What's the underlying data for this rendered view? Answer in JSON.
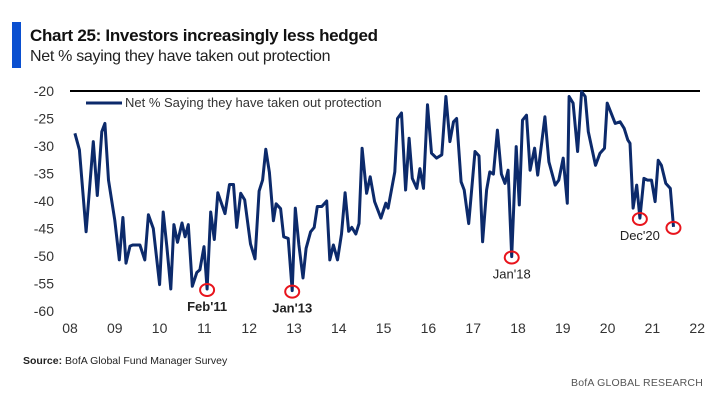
{
  "header": {
    "title": "Chart 25: Investors increasingly less hedged",
    "subtitle": "Net % saying they have taken out protection"
  },
  "footer": {
    "source_label": "Source:",
    "source_text": "BofA Global Fund Manager Survey",
    "brand": "BofA GLOBAL RESEARCH"
  },
  "chart_data": {
    "type": "line",
    "title": "Chart 25: Investors increasingly less hedged",
    "subtitle": "Net % saying they have taken out protection",
    "xlabel": "",
    "ylabel": "",
    "ylim": [
      -60,
      -20
    ],
    "xlim": [
      2008,
      2022
    ],
    "yticks": [
      -20,
      -25,
      -30,
      -35,
      -40,
      -45,
      -50,
      -55,
      -60
    ],
    "xticks": [
      {
        "v": 2008,
        "label": "08"
      },
      {
        "v": 2009,
        "label": "09"
      },
      {
        "v": 2010,
        "label": "10"
      },
      {
        "v": 2011,
        "label": "11"
      },
      {
        "v": 2012,
        "label": "12"
      },
      {
        "v": 2013,
        "label": "13"
      },
      {
        "v": 2014,
        "label": "14"
      },
      {
        "v": 2015,
        "label": "15"
      },
      {
        "v": 2016,
        "label": "16"
      },
      {
        "v": 2017,
        "label": "17"
      },
      {
        "v": 2018,
        "label": "18"
      },
      {
        "v": 2019,
        "label": "19"
      },
      {
        "v": 2020,
        "label": "20"
      },
      {
        "v": 2021,
        "label": "21"
      },
      {
        "v": 2022,
        "label": "22"
      }
    ],
    "grid": false,
    "legend": {
      "placement": "top-left",
      "entries": [
        "Net % Saying they have taken out protection"
      ]
    },
    "colors": {
      "line": "#0c2a6b",
      "highlight": "#e8141c"
    },
    "series": [
      {
        "name": "Net % Saying they have taken out protection",
        "points": [
          [
            2008.11,
            -27.7
          ],
          [
            2008.21,
            -30.7
          ],
          [
            2008.36,
            -45.6
          ],
          [
            2008.52,
            -29.2
          ],
          [
            2008.61,
            -39
          ],
          [
            2008.71,
            -27.4
          ],
          [
            2008.78,
            -25.9
          ],
          [
            2008.86,
            -36.2
          ],
          [
            2009.0,
            -43.5
          ],
          [
            2009.1,
            -50.7
          ],
          [
            2009.18,
            -43
          ],
          [
            2009.25,
            -51.3
          ],
          [
            2009.34,
            -48.2
          ],
          [
            2009.4,
            -48
          ],
          [
            2009.56,
            -48
          ],
          [
            2009.67,
            -50.7
          ],
          [
            2009.75,
            -42.5
          ],
          [
            2009.86,
            -45
          ],
          [
            2010.0,
            -55.2
          ],
          [
            2010.08,
            -42
          ],
          [
            2010.16,
            -48.2
          ],
          [
            2010.25,
            -56
          ],
          [
            2010.32,
            -44.3
          ],
          [
            2010.4,
            -47.5
          ],
          [
            2010.5,
            -44
          ],
          [
            2010.57,
            -46.5
          ],
          [
            2010.64,
            -44.3
          ],
          [
            2010.73,
            -55.5
          ],
          [
            2010.83,
            -53
          ],
          [
            2010.9,
            -52.5
          ],
          [
            2010.99,
            -48.3
          ],
          [
            2011.06,
            -56
          ],
          [
            2011.14,
            -42
          ],
          [
            2011.22,
            -47
          ],
          [
            2011.3,
            -38.5
          ],
          [
            2011.46,
            -42.3
          ],
          [
            2011.56,
            -37
          ],
          [
            2011.65,
            -37
          ],
          [
            2011.72,
            -44.8
          ],
          [
            2011.81,
            -38.6
          ],
          [
            2011.9,
            -39.8
          ],
          [
            2012.03,
            -47.8
          ],
          [
            2012.13,
            -50.5
          ],
          [
            2012.22,
            -38.2
          ],
          [
            2012.3,
            -36.2
          ],
          [
            2012.37,
            -30.6
          ],
          [
            2012.45,
            -34.8
          ],
          [
            2012.54,
            -43.6
          ],
          [
            2012.6,
            -40.5
          ],
          [
            2012.7,
            -41.4
          ],
          [
            2012.77,
            -46.5
          ],
          [
            2012.87,
            -46.8
          ],
          [
            2012.96,
            -56.3
          ],
          [
            2013.03,
            -41.3
          ],
          [
            2013.11,
            -48
          ],
          [
            2013.2,
            -54
          ],
          [
            2013.27,
            -48.6
          ],
          [
            2013.37,
            -45.6
          ],
          [
            2013.45,
            -44.8
          ],
          [
            2013.52,
            -41
          ],
          [
            2013.62,
            -41
          ],
          [
            2013.73,
            -40
          ],
          [
            2013.8,
            -50.7
          ],
          [
            2013.88,
            -48
          ],
          [
            2013.97,
            -50.7
          ],
          [
            2014.06,
            -46
          ],
          [
            2014.14,
            -38.5
          ],
          [
            2014.22,
            -45.5
          ],
          [
            2014.29,
            -44.8
          ],
          [
            2014.38,
            -46
          ],
          [
            2014.45,
            -44.1
          ],
          [
            2014.52,
            -30.4
          ],
          [
            2014.62,
            -38.6
          ],
          [
            2014.7,
            -35.6
          ],
          [
            2014.8,
            -40.1
          ],
          [
            2014.94,
            -43.1
          ],
          [
            2015.05,
            -40.4
          ],
          [
            2015.1,
            -41.3
          ],
          [
            2015.25,
            -34.7
          ],
          [
            2015.31,
            -25
          ],
          [
            2015.4,
            -24
          ],
          [
            2015.49,
            -38
          ],
          [
            2015.57,
            -28.6
          ],
          [
            2015.64,
            -35.9
          ],
          [
            2015.74,
            -37.7
          ],
          [
            2015.81,
            -34.1
          ],
          [
            2015.89,
            -37.7
          ],
          [
            2015.98,
            -22.5
          ],
          [
            2016.07,
            -31.3
          ],
          [
            2016.18,
            -32.2
          ],
          [
            2016.3,
            -31.6
          ],
          [
            2016.39,
            -21
          ],
          [
            2016.48,
            -29.2
          ],
          [
            2016.56,
            -25.6
          ],
          [
            2016.63,
            -25
          ],
          [
            2016.73,
            -36.5
          ],
          [
            2016.8,
            -38
          ],
          [
            2016.9,
            -44.1
          ],
          [
            2017.04,
            -31
          ],
          [
            2017.13,
            -31.8
          ],
          [
            2017.21,
            -47.4
          ],
          [
            2017.3,
            -38
          ],
          [
            2017.37,
            -34.7
          ],
          [
            2017.45,
            -35.1
          ],
          [
            2017.54,
            -27.1
          ],
          [
            2017.63,
            -35.1
          ],
          [
            2017.71,
            -36.8
          ],
          [
            2017.78,
            -34.4
          ],
          [
            2017.86,
            -50.1
          ],
          [
            2017.96,
            -30.1
          ],
          [
            2018.03,
            -40.7
          ],
          [
            2018.1,
            -25.3
          ],
          [
            2018.19,
            -24.4
          ],
          [
            2018.27,
            -34.4
          ],
          [
            2018.37,
            -30.4
          ],
          [
            2018.44,
            -35.3
          ],
          [
            2018.6,
            -24.7
          ],
          [
            2018.69,
            -32.9
          ],
          [
            2018.83,
            -37.1
          ],
          [
            2018.91,
            -36.2
          ],
          [
            2019.01,
            -32.2
          ],
          [
            2019.1,
            -40.4
          ],
          [
            2019.14,
            -21
          ],
          [
            2019.23,
            -22.2
          ],
          [
            2019.33,
            -31
          ],
          [
            2019.42,
            -20.1
          ],
          [
            2019.5,
            -21
          ],
          [
            2019.57,
            -27.4
          ],
          [
            2019.73,
            -33.5
          ],
          [
            2019.83,
            -31.3
          ],
          [
            2019.93,
            -30.4
          ],
          [
            2019.99,
            -22.2
          ],
          [
            2020.17,
            -25.9
          ],
          [
            2020.28,
            -25.6
          ],
          [
            2020.37,
            -26.8
          ],
          [
            2020.45,
            -28.9
          ],
          [
            2020.5,
            -29.5
          ],
          [
            2020.57,
            -41.3
          ],
          [
            2020.65,
            -37.1
          ],
          [
            2020.72,
            -43.1
          ],
          [
            2020.81,
            -35.9
          ],
          [
            2020.89,
            -36.2
          ],
          [
            2020.98,
            -36.2
          ],
          [
            2021.06,
            -40.1
          ],
          [
            2021.13,
            -32.6
          ],
          [
            2021.2,
            -33.5
          ],
          [
            2021.3,
            -36.8
          ],
          [
            2021.4,
            -37.7
          ],
          [
            2021.47,
            -44.7
          ]
        ]
      }
    ],
    "annotations": [
      {
        "label": "Feb'11",
        "x": 2011.06,
        "y": -56,
        "pos": "below"
      },
      {
        "label": "Jan'13",
        "x": 2012.96,
        "y": -56.3,
        "pos": "below"
      },
      {
        "label": "Jan'18",
        "x": 2017.86,
        "y": -50.1,
        "pos": "below"
      },
      {
        "label": "Dec'20",
        "x": 2020.72,
        "y": -43.1,
        "pos": "below"
      },
      {
        "label": "",
        "x": 2021.47,
        "y": -44.7,
        "pos": "none"
      }
    ]
  }
}
